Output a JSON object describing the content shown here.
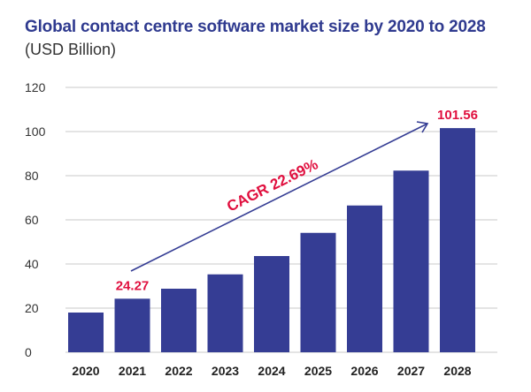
{
  "chart_data": {
    "type": "bar",
    "title": "Global contact centre software market size by 2020 to 2028",
    "subtitle": "(USD Billion)",
    "categories": [
      "2020",
      "2021",
      "2022",
      "2023",
      "2024",
      "2025",
      "2026",
      "2027",
      "2028"
    ],
    "values": [
      18.0,
      24.27,
      28.8,
      35.3,
      43.6,
      54.1,
      66.5,
      82.3,
      101.56
    ],
    "data_labels": [
      {
        "category": "2021",
        "text": "24.27"
      },
      {
        "category": "2028",
        "text": "101.56"
      }
    ],
    "annotation": {
      "text": "CAGR 22.69%",
      "from": "2021",
      "to": "2028"
    },
    "yticks": [
      0,
      20,
      40,
      60,
      80,
      100,
      120
    ],
    "ylim": [
      0,
      120
    ],
    "xlabel": "",
    "ylabel": "",
    "grid": true,
    "colors": {
      "bar": "#353d94",
      "label": "#e0103f",
      "title": "#2f3a8f",
      "arrow": "#353d94"
    }
  }
}
